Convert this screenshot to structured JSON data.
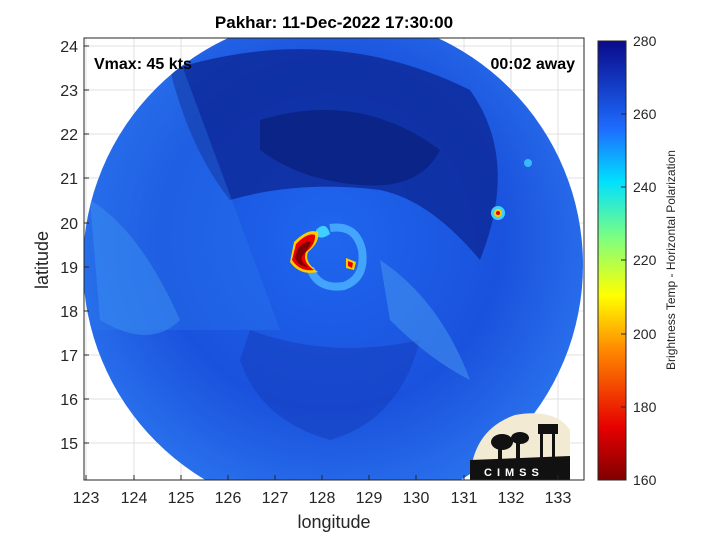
{
  "title": "Pakhar: 11-Dec-2022 17:30:00",
  "vmax_text": "Vmax: 45 kts",
  "time_offset_text": "00:02 away",
  "xaxis": {
    "label": "longitude",
    "ticks": [
      "123",
      "124",
      "125",
      "126",
      "127",
      "128",
      "129",
      "130",
      "131",
      "132",
      "133"
    ]
  },
  "yaxis": {
    "label": "latitude",
    "ticks": [
      "24",
      "23",
      "22",
      "21",
      "20",
      "19",
      "18",
      "17",
      "16",
      "15"
    ]
  },
  "colorbar": {
    "label": "Brightness Temp - Horizontal Polarization",
    "ticks": [
      "280",
      "260",
      "240",
      "220",
      "200",
      "180",
      "160"
    ],
    "range": [
      160,
      280
    ],
    "colormap": "jet"
  },
  "logo": {
    "text": "CIMSS"
  },
  "colors": {
    "deep_blue": "#0a2a9a",
    "mid_blue": "#1f5fe6",
    "light_blue": "#3a8cf0",
    "cyan": "#3fd0ff",
    "red": "#c81010",
    "dark_red": "#800000"
  }
}
